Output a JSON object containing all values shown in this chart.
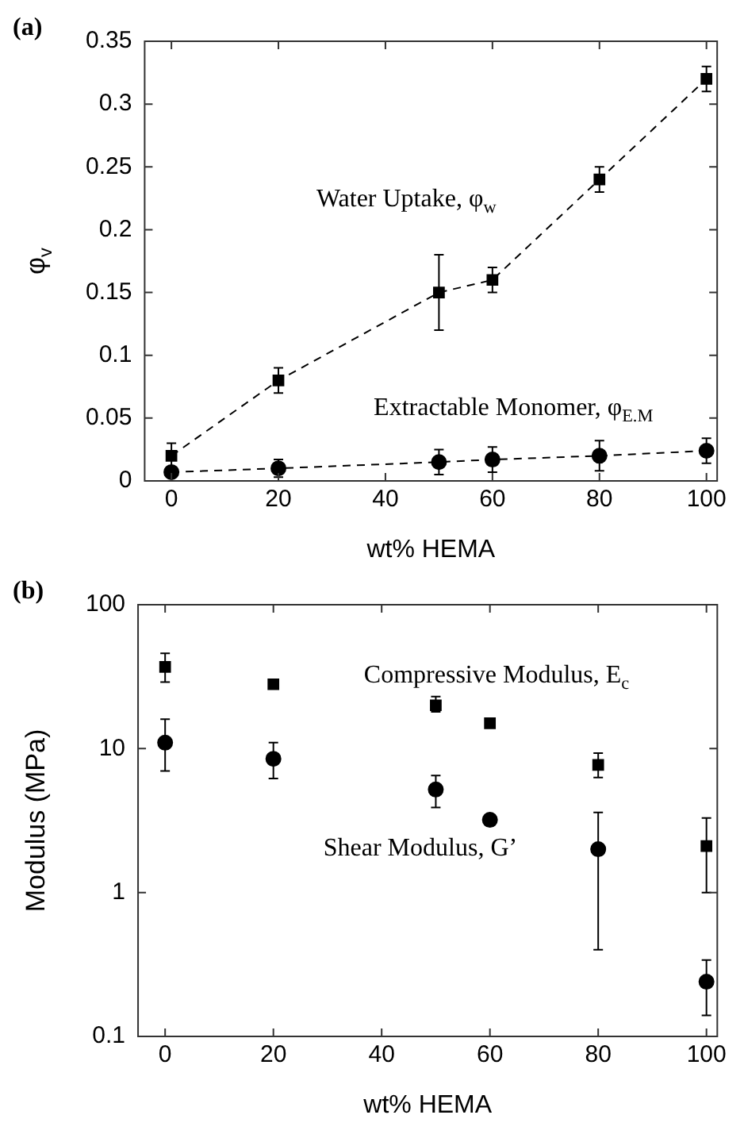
{
  "chart_data": [
    {
      "type": "line",
      "title": "(a)",
      "xlabel": "wt% HEMA",
      "ylabel": "φ$_{v}$",
      "x": [
        0,
        20,
        50,
        60,
        80,
        100
      ],
      "xlim": [
        -5,
        102
      ],
      "xticks": [
        0,
        20,
        40,
        60,
        80,
        100
      ],
      "ylim": [
        0,
        0.35
      ],
      "yticks": [
        0,
        0.05,
        0.1,
        0.15,
        0.2,
        0.25,
        0.3,
        0.35
      ],
      "grid": false,
      "series": [
        {
          "name": "Water Uptake, φ$_{w}$",
          "color": "#000000",
          "marker": "square",
          "line_style": "dashed",
          "values": [
            0.02,
            0.08,
            0.15,
            0.16,
            0.24,
            0.32
          ],
          "errors": [
            0.01,
            0.01,
            0.03,
            0.01,
            0.01,
            0.01
          ]
        },
        {
          "name": "Extractable Monomer, φ$_{E.M}$",
          "color": "#000000",
          "marker": "circle",
          "line_style": "dashed",
          "values": [
            0.007,
            0.01,
            0.015,
            0.017,
            0.02,
            0.024
          ],
          "errors": [
            null,
            0.007,
            0.01,
            0.01,
            0.012,
            0.01
          ]
        }
      ]
    },
    {
      "type": "scatter",
      "title": "(b)",
      "xlabel": "wt% HEMA",
      "ylabel": "Modulus (MPa)",
      "x": [
        0,
        20,
        50,
        60,
        80,
        100
      ],
      "xlim": [
        -5,
        102
      ],
      "xticks": [
        0,
        20,
        40,
        60,
        80,
        100
      ],
      "ylim": [
        0.1,
        100
      ],
      "yticks": [
        0.1,
        1,
        10,
        100
      ],
      "log": true,
      "grid": false,
      "series": [
        {
          "name": "Compressive Modulus, E$_{c}$",
          "color": "#000000",
          "marker": "square",
          "values": [
            37,
            28,
            20,
            15,
            7.7,
            2.1
          ],
          "errors": [
            [
              29,
              46
            ],
            null,
            [
              18,
              23
            ],
            null,
            [
              6.3,
              9.3
            ],
            [
              1,
              3.3
            ]
          ]
        },
        {
          "name": "Shear Modulus, G’",
          "color": "#000000",
          "marker": "circle",
          "values": [
            11,
            8.5,
            5.2,
            3.2,
            2.0,
            0.24
          ],
          "errors": [
            [
              7,
              16
            ],
            [
              6.2,
              11
            ],
            [
              3.9,
              6.5
            ],
            null,
            [
              0.4,
              3.6
            ],
            [
              0.14,
              0.34
            ]
          ]
        }
      ]
    }
  ]
}
